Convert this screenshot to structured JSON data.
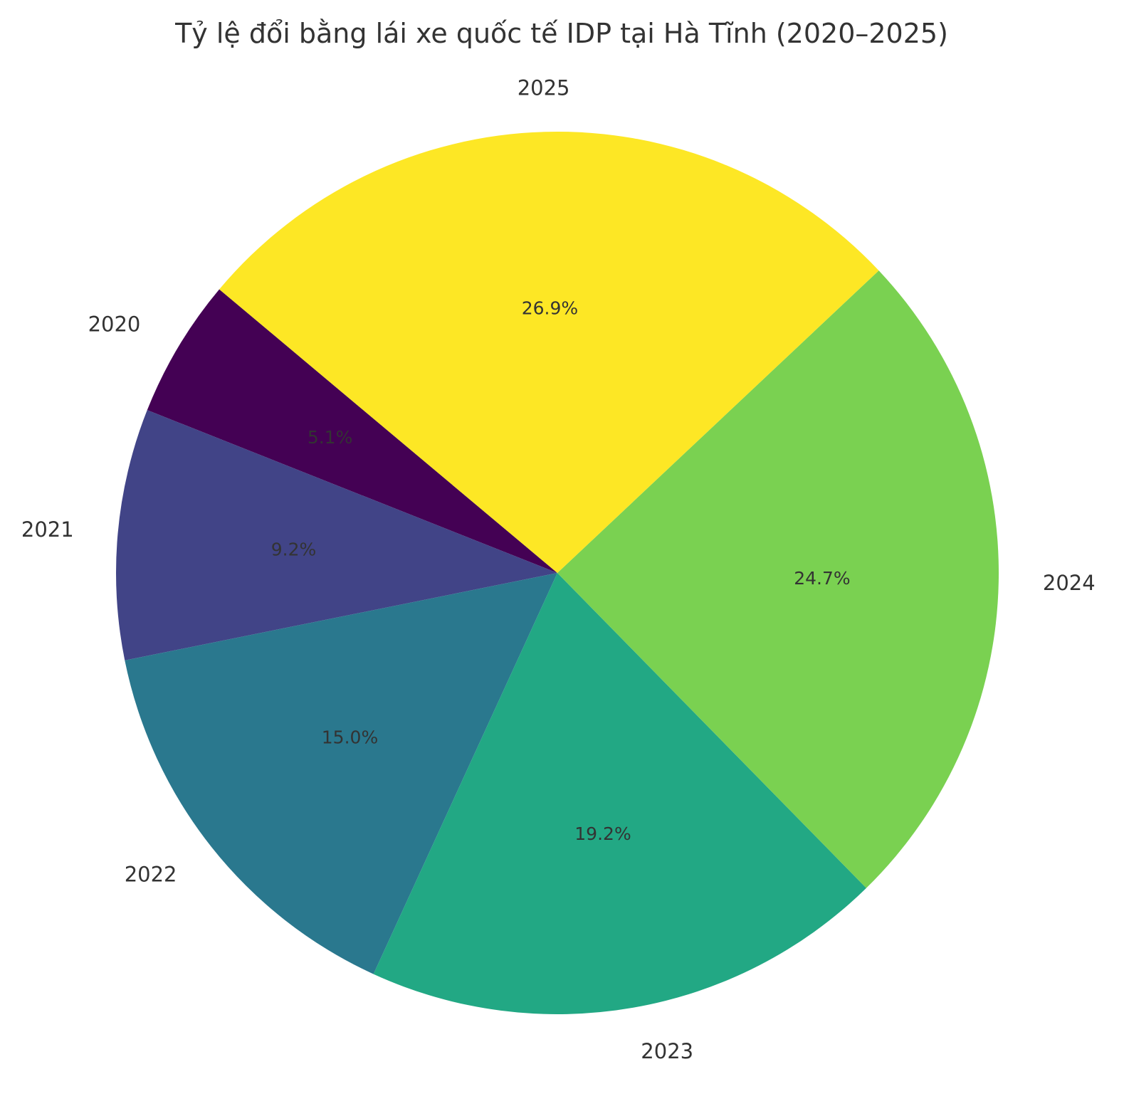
{
  "chart_data": {
    "type": "pie",
    "title": "Tỷ lệ đổi bằng lái xe quốc tế IDP tại Hà Tĩnh (2020–2025)",
    "categories": [
      "2020",
      "2021",
      "2022",
      "2023",
      "2024",
      "2025"
    ],
    "values": [
      5.1,
      9.2,
      15.0,
      19.2,
      24.7,
      26.9
    ],
    "percent_labels": [
      "5.1%",
      "9.2%",
      "15.0%",
      "19.2%",
      "24.7%",
      "26.9%"
    ],
    "colors": [
      "#440154",
      "#414487",
      "#2a788e",
      "#22a884",
      "#7ad151",
      "#fde725"
    ],
    "start_angle_deg": 140,
    "direction": "counterclockwise",
    "legend": "none"
  }
}
